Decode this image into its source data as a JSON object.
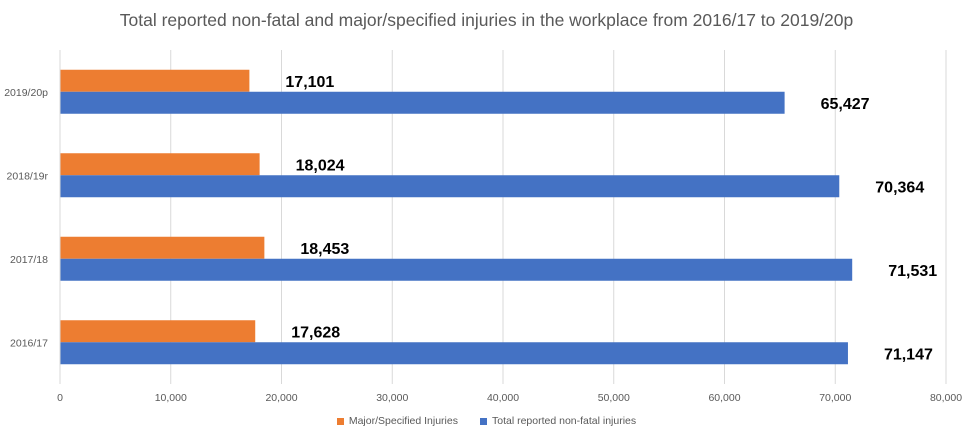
{
  "chart_data": {
    "type": "bar",
    "orientation": "horizontal",
    "title": "Total reported non-fatal and major/specified injuries in the workplace from 2016/17 to 2019/20p",
    "categories": [
      "2016/17",
      "2017/18",
      "2018/19r",
      "2019/20p"
    ],
    "series": [
      {
        "name": "Major/Specified Injuries",
        "color": "#ED7D31",
        "values": [
          17628,
          18453,
          18024,
          17101
        ],
        "labels": [
          "17,628",
          "18,453",
          "18,024",
          "17,101"
        ]
      },
      {
        "name": "Total reported non-fatal injuries",
        "color": "#4472C4",
        "values": [
          71147,
          71531,
          70364,
          65427
        ],
        "labels": [
          "71,147",
          "71,531",
          "70,364",
          "65,427"
        ]
      }
    ],
    "xlim": [
      0,
      80000
    ],
    "x_ticks": [
      0,
      10000,
      20000,
      30000,
      40000,
      50000,
      60000,
      70000,
      80000
    ],
    "x_tick_labels": [
      "0",
      "10,000",
      "20,000",
      "30,000",
      "40,000",
      "50,000",
      "60,000",
      "70,000",
      "80,000"
    ],
    "grid": true,
    "legend_position": "bottom"
  }
}
